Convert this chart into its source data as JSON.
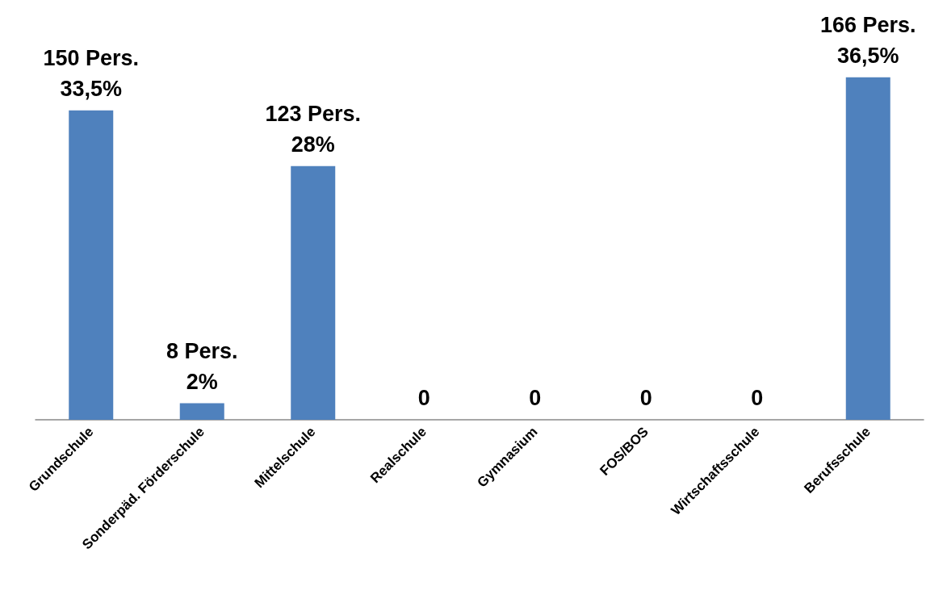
{
  "chart_data": {
    "type": "bar",
    "categories": [
      "Grundschule",
      "Sonderpäd. Förderschule",
      "Mittelschule",
      "Realschule",
      "Gymnasium",
      "FOS/BOS",
      "Wirtschaftsschule",
      "Berufsschule"
    ],
    "values": [
      150,
      8,
      123,
      0,
      0,
      0,
      0,
      166
    ],
    "value_labels": [
      "150 Pers.\n33,5%",
      "8 Pers.\n2%",
      "123 Pers.\n28%",
      "0",
      "0",
      "0",
      "0",
      "166 Pers.\n36,5%"
    ],
    "color": "#4f81bd"
  }
}
